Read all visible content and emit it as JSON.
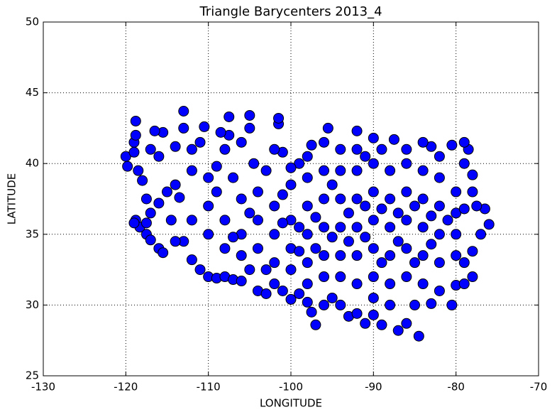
{
  "chart_data": {
    "type": "scatter",
    "title": "Triangle Barycenters 2013_4",
    "xlabel": "LONGITUDE",
    "ylabel": "LATITUDE",
    "color": "#0000ff",
    "grid": true,
    "xlim": [
      -130,
      -70
    ],
    "xticks": [
      -130,
      -120,
      -110,
      -100,
      -90,
      -80,
      -70
    ],
    "ylim": [
      25,
      50
    ],
    "yticks": [
      25,
      30,
      35,
      40,
      45,
      50
    ],
    "x": [
      -120,
      -119.8,
      -119,
      -118.8,
      -118.8,
      -119,
      -118.5,
      -118,
      -117.5,
      -118.8,
      -118.3,
      -117.5,
      -117,
      -116,
      -115.5,
      -117,
      -116,
      -115,
      -114,
      -113.5,
      -114.5,
      -113,
      -112,
      -111,
      -110,
      -109,
      -108,
      -107,
      -106,
      -105,
      -104,
      -103,
      -102,
      -101,
      -100,
      -99,
      -98,
      -97.5,
      -97,
      -96,
      -95,
      -94,
      -93,
      -92,
      -91,
      -90,
      -89,
      -88,
      -87,
      -86,
      -85,
      -84.5,
      -83,
      -82,
      -80.5,
      -80,
      -79,
      -78,
      -79,
      -78,
      -77,
      -76,
      -76.5,
      -77.5,
      -78,
      -78,
      -79,
      -78.5,
      -79,
      -80.5,
      -82,
      -83,
      -84,
      -86,
      -87.5,
      -89,
      -90,
      -91,
      -92,
      -92,
      -94,
      -95.5,
      -96,
      -97.5,
      -98,
      -99,
      -100,
      -101,
      -101.5,
      -101.5,
      -102,
      -104.5,
      -105,
      -105,
      -106,
      -107.5,
      -107.5,
      -108.5,
      -108,
      -110.5,
      -111,
      -112,
      -113,
      -113,
      -114,
      -115.5,
      -116.5,
      -116,
      -117,
      -112,
      -110,
      -109,
      -110,
      -110,
      -108,
      -108,
      -106,
      -106,
      -106,
      -104,
      -104,
      -104,
      -102,
      -102,
      -102,
      -100,
      -100,
      -100,
      -100,
      -98,
      -98,
      -98,
      -98,
      -98,
      -96,
      -96,
      -96,
      -96,
      -96,
      -94,
      -94,
      -94,
      -94,
      -94,
      -92,
      -92,
      -92,
      -92,
      -92,
      -90,
      -90,
      -90,
      -90,
      -90,
      -90,
      -88,
      -88,
      -88,
      -88,
      -88,
      -86,
      -86,
      -86,
      -86,
      -86,
      -84,
      -84,
      -84,
      -84,
      -84,
      -82,
      -82,
      -82,
      -82,
      -80,
      -80,
      -80,
      -80,
      -112,
      -114,
      -109,
      -107,
      -103,
      -101,
      -99,
      -97,
      -95,
      -93,
      -91,
      -89,
      -87,
      -85,
      -83,
      -81,
      -79,
      -97,
      -93,
      -89,
      -85,
      -101,
      -105,
      -107,
      -103,
      -99,
      -95,
      -91,
      -87,
      -83,
      -119,
      -117.5
    ],
    "values": [
      40.5,
      39.8,
      41.5,
      43,
      42,
      40.8,
      39.5,
      38.8,
      37.5,
      36,
      35.5,
      35,
      34.6,
      34,
      33.7,
      36.5,
      37.2,
      38,
      38.5,
      37.6,
      36,
      34.5,
      33.2,
      32.5,
      32,
      31.9,
      32,
      31.8,
      31.7,
      32.5,
      31,
      30.8,
      31.5,
      31,
      30.4,
      30.8,
      30.2,
      29.5,
      28.6,
      30,
      30.5,
      30,
      29.2,
      29.4,
      28.7,
      29.3,
      28.6,
      30,
      28.2,
      28.7,
      30,
      27.8,
      30.1,
      31,
      30,
      31.4,
      31.5,
      32,
      33,
      33.8,
      35,
      35.7,
      36.8,
      37,
      38,
      39.2,
      40,
      41,
      41.5,
      41.3,
      40.5,
      41.2,
      41.5,
      41,
      41.7,
      41,
      41.8,
      40.5,
      42.3,
      41,
      41,
      42.5,
      41.5,
      41.3,
      40.5,
      40,
      39.7,
      40.8,
      42.8,
      43.2,
      41,
      40,
      42.5,
      43.4,
      41.5,
      43.3,
      42,
      42.2,
      41,
      42.6,
      41.5,
      41,
      43.7,
      42.5,
      41.2,
      42.2,
      42.3,
      40.5,
      41,
      39.5,
      39,
      39.8,
      37,
      35,
      36,
      34,
      37.5,
      35,
      33.5,
      38,
      36,
      34,
      37,
      35,
      33,
      38.5,
      36,
      34,
      32.5,
      39,
      37,
      35,
      33,
      31.5,
      39.5,
      37.5,
      35.5,
      33.5,
      32,
      39.5,
      37.5,
      35.5,
      33.5,
      32,
      39.5,
      37.5,
      35.5,
      33.5,
      31.5,
      40,
      38,
      36,
      34,
      32,
      30.5,
      39.5,
      37.5,
      35.5,
      33.5,
      31.5,
      40,
      38,
      36,
      34,
      32,
      39.5,
      37.5,
      35.5,
      33.5,
      31.5,
      39,
      37,
      35,
      33,
      38,
      36.5,
      35,
      33.5,
      36,
      34.5,
      38,
      39,
      39.5,
      37.8,
      35.5,
      36.2,
      38.5,
      36.5,
      37,
      36.8,
      36.5,
      37,
      36.3,
      36,
      36.8,
      34,
      34.5,
      33,
      33,
      35.8,
      36.5,
      34.8,
      32.5,
      33.8,
      34.8,
      34.8,
      34.5,
      34.3,
      35.8,
      35.8
    ]
  }
}
